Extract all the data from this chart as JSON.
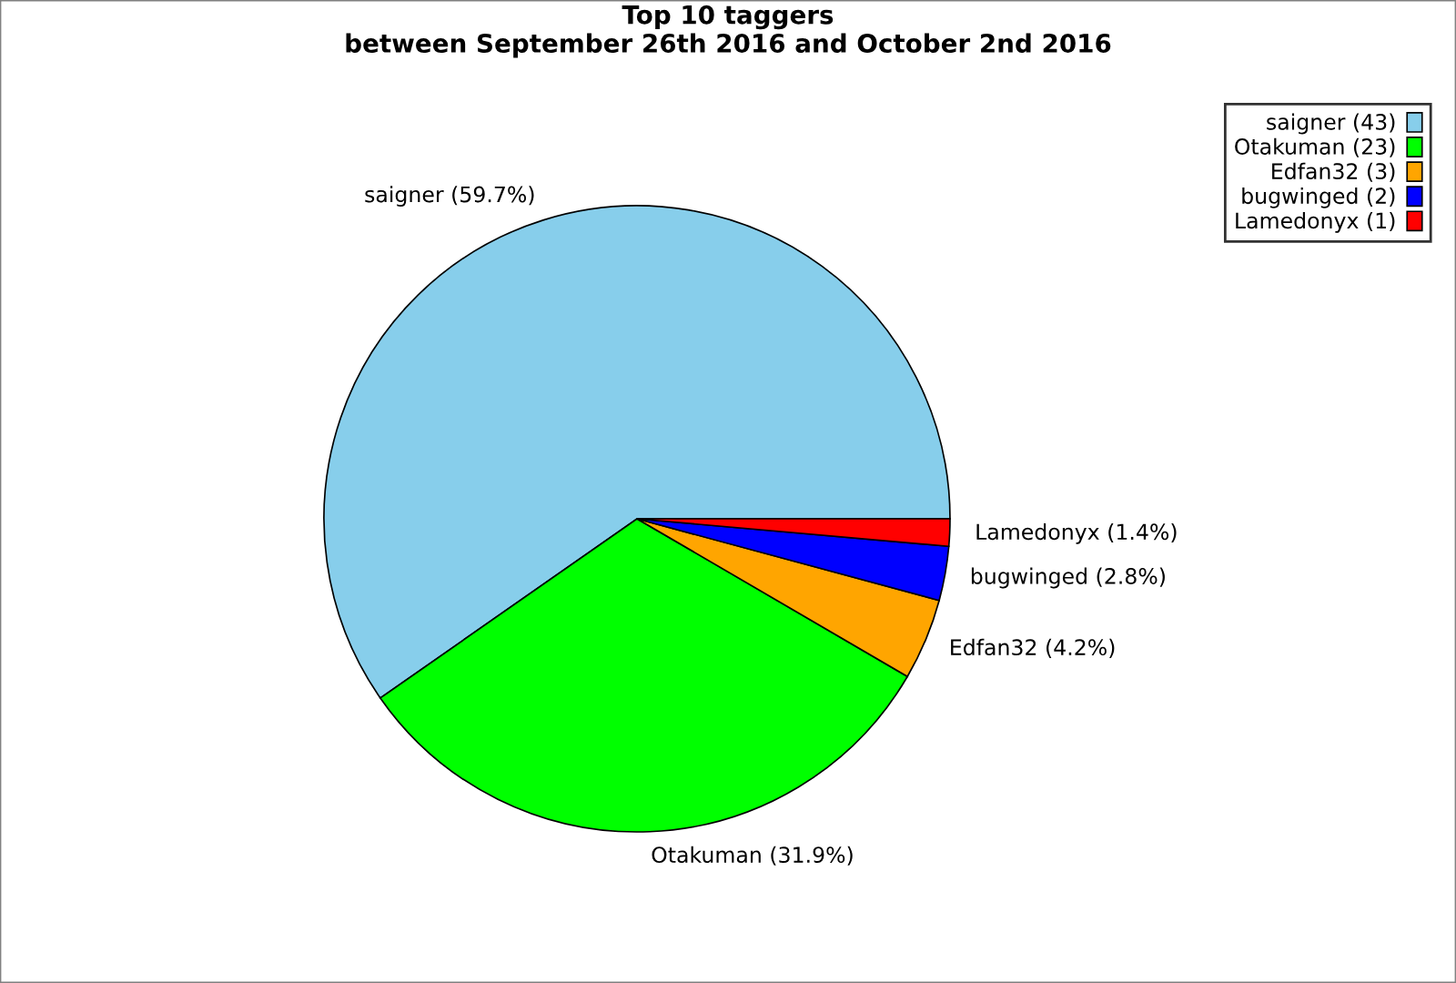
{
  "chart_data": {
    "type": "pie",
    "title": "Top 10 taggers\nbetween September 26th 2016 and October 2nd 2016",
    "categories": [
      "saigner (59.7%)",
      "Otakuman (31.9%)",
      "Edfan32 (4.2%)",
      "bugwinged (2.8%)",
      "Lamedonyx (1.4%)"
    ],
    "values": [
      59.7,
      31.9,
      4.2,
      2.8,
      1.4
    ],
    "colors": [
      "#87ceeb",
      "#00ff00",
      "#ffa500",
      "#0000ff",
      "#ff0000"
    ],
    "annotations": [
      "saigner (43)",
      "Otakuman (23)",
      "Edfan32 (3)",
      "bugwinged (2)",
      "Lamedonyx (1)"
    ]
  }
}
